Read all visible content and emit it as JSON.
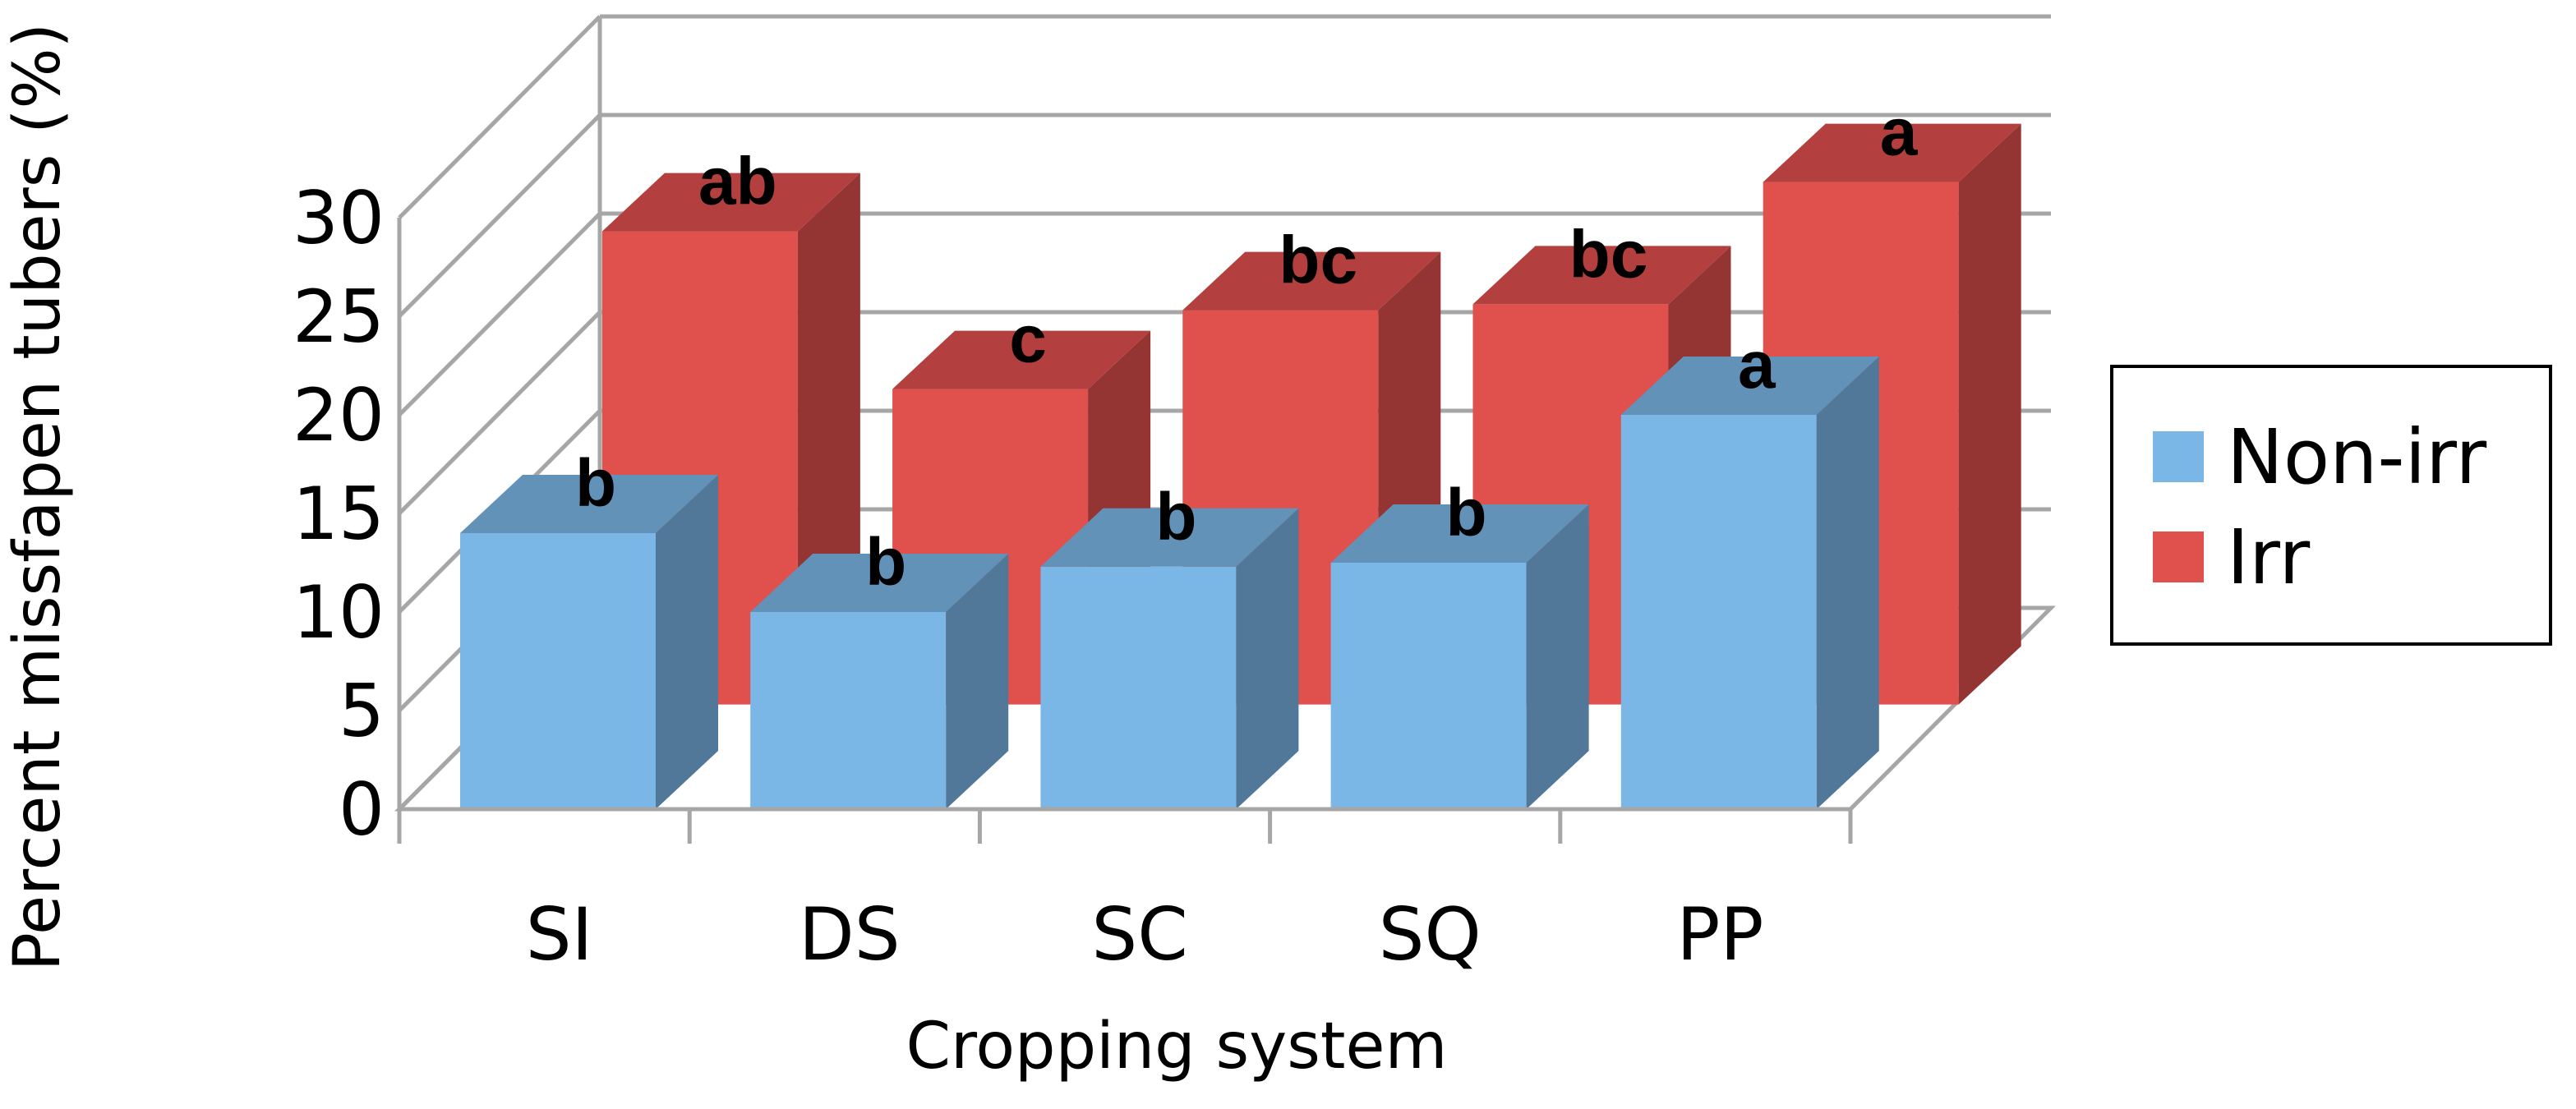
{
  "chart_data": {
    "type": "bar",
    "style": "3d-clustered-depth",
    "title": "",
    "xlabel": "Cropping system",
    "ylabel": "Percent missfapen tubers (%)",
    "ylim": [
      0,
      30
    ],
    "yticks": [
      0,
      5,
      10,
      15,
      20,
      25,
      30
    ],
    "categories": [
      "SI",
      "DS",
      "SC",
      "SQ",
      "PP"
    ],
    "grid": true,
    "legend_position": "right",
    "series": [
      {
        "name": "Non-irr",
        "color": "#7ab6e6",
        "values": [
          14,
          10,
          12.3,
          12.5,
          20
        ],
        "labels": [
          "b",
          "b",
          "b",
          "b",
          "a"
        ]
      },
      {
        "name": "Irr",
        "color": "#e0504d",
        "values": [
          24,
          16,
          20,
          20.3,
          26.5
        ],
        "labels": [
          "ab",
          "c",
          "bc",
          "bc",
          "a"
        ]
      }
    ]
  }
}
